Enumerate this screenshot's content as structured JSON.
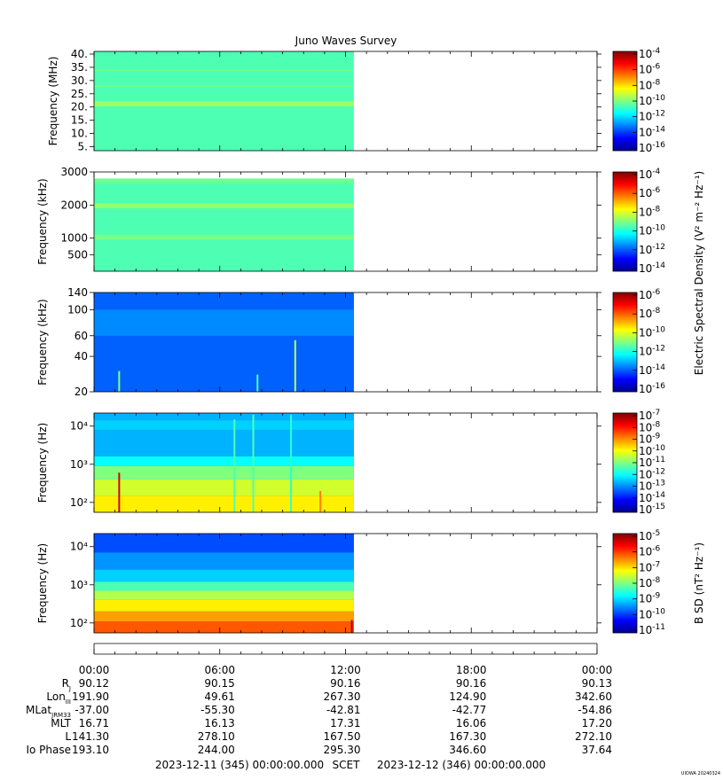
{
  "title": "Juno Waves Survey",
  "watermark": "UIOWA 20240324",
  "colors": {
    "jet": [
      "#00008f",
      "#0000ff",
      "#0080ff",
      "#00ffff",
      "#80ff80",
      "#ffff00",
      "#ff8000",
      "#ff0000",
      "#800000"
    ]
  },
  "chart_data": [
    {
      "type": "heatmap",
      "name": "panel-1",
      "ylabel": "Frequency (MHz)",
      "yscale": "linear",
      "ylim": [
        3.5,
        41
      ],
      "yticks": [
        {
          "v": 5,
          "t": "5."
        },
        {
          "v": 10,
          "t": "10."
        },
        {
          "v": 15,
          "t": "15."
        },
        {
          "v": 20,
          "t": "20."
        },
        {
          "v": 25,
          "t": "25."
        },
        {
          "v": 30,
          "t": "30."
        },
        {
          "v": 35,
          "t": "35."
        },
        {
          "v": 40,
          "t": "40."
        }
      ],
      "data_end_hour": 12.4,
      "bands": [
        {
          "low": 3.5,
          "high": 41,
          "level": 0.45
        },
        {
          "low": 20.3,
          "high": 22.2,
          "level": 0.53
        },
        {
          "low": 27.5,
          "high": 28.2,
          "level": 0.48
        },
        {
          "low": 33.5,
          "high": 34.2,
          "level": 0.48
        }
      ],
      "spikes": [],
      "colorbar": {
        "label": "",
        "exponents": [
          "-4",
          "-6",
          "-8",
          "-10",
          "-12",
          "-14",
          "-16"
        ]
      }
    },
    {
      "type": "heatmap",
      "name": "panel-2",
      "ylabel": "Frequency (kHz)",
      "yscale": "linear",
      "ylim": [
        0,
        3000
      ],
      "yticks": [
        {
          "v": 500,
          "t": "500"
        },
        {
          "v": 1000,
          "t": "1000"
        },
        {
          "v": 2000,
          "t": "2000"
        },
        {
          "v": 3000,
          "t": "3000"
        }
      ],
      "data_end_hour": 12.4,
      "bands": [
        {
          "low": 0,
          "high": 2800,
          "level": 0.45
        },
        {
          "low": 1900,
          "high": 2050,
          "level": 0.52
        },
        {
          "low": 950,
          "high": 1100,
          "level": 0.49
        },
        {
          "low": 2650,
          "high": 2800,
          "level": 0.48
        }
      ],
      "spikes": [],
      "colorbar": {
        "label": "Electric Spectral Density (V² m⁻² Hz⁻¹)",
        "exponents": [
          "-4",
          "-6",
          "-8",
          "-10",
          "-12",
          "-14"
        ]
      }
    },
    {
      "type": "heatmap",
      "name": "panel-3",
      "ylabel": "Frequency (kHz)",
      "yscale": "log",
      "ylim": [
        20,
        140
      ],
      "yticks": [
        {
          "v": 20,
          "t": "20"
        },
        {
          "v": 40,
          "t": "40"
        },
        {
          "v": 60,
          "t": "60"
        },
        {
          "v": 100,
          "t": "100"
        },
        {
          "v": 140,
          "t": "140"
        }
      ],
      "data_end_hour": 12.4,
      "bands": [
        {
          "low": 20,
          "high": 140,
          "level": 0.22
        },
        {
          "low": 60,
          "high": 100,
          "level": 0.26
        }
      ],
      "spikes": [
        {
          "hour": 1.2,
          "low": 20,
          "high": 30,
          "level": 0.5
        },
        {
          "hour": 7.8,
          "low": 20,
          "high": 28,
          "level": 0.45
        },
        {
          "hour": 9.6,
          "low": 20,
          "high": 55,
          "level": 0.55
        }
      ],
      "colorbar": {
        "label": "",
        "exponents": [
          "-6",
          "-8",
          "-10",
          "-12",
          "-14",
          "-16"
        ]
      }
    },
    {
      "type": "heatmap",
      "name": "panel-4",
      "ylabel": "Frequency (Hz)",
      "yscale": "log",
      "ylim": [
        55,
        22000
      ],
      "yticks": [
        {
          "v": 100,
          "t": "10²"
        },
        {
          "v": 1000,
          "t": "10³"
        },
        {
          "v": 10000,
          "t": "10⁴"
        }
      ],
      "data_end_hour": 12.4,
      "bands": [
        {
          "low": 55,
          "high": 22000,
          "level": 0.25
        },
        {
          "low": 1600,
          "high": 22000,
          "level": 0.3
        },
        {
          "low": 900,
          "high": 1600,
          "level": 0.38
        },
        {
          "low": 400,
          "high": 900,
          "level": 0.5
        },
        {
          "low": 150,
          "high": 400,
          "level": 0.58
        },
        {
          "low": 55,
          "high": 150,
          "level": 0.64
        },
        {
          "low": 8000,
          "high": 14000,
          "level": 0.33
        }
      ],
      "spikes": [
        {
          "hour": 1.2,
          "low": 55,
          "high": 600,
          "level": 0.92
        },
        {
          "hour": 6.7,
          "low": 55,
          "high": 15000,
          "level": 0.45
        },
        {
          "hour": 7.6,
          "low": 55,
          "high": 20000,
          "level": 0.45
        },
        {
          "hour": 9.4,
          "low": 55,
          "high": 20000,
          "level": 0.42
        },
        {
          "hour": 10.8,
          "low": 55,
          "high": 200,
          "level": 0.75
        }
      ],
      "colorbar": {
        "label": "",
        "exponents": [
          "-7",
          "-8",
          "-9",
          "-10",
          "-11",
          "-12",
          "-13",
          "-14",
          "-15"
        ]
      }
    },
    {
      "type": "heatmap",
      "name": "panel-5",
      "ylabel": "Frequency (Hz)",
      "yscale": "log",
      "ylim": [
        55,
        22000
      ],
      "yticks": [
        {
          "v": 100,
          "t": "10²"
        },
        {
          "v": 1000,
          "t": "10³"
        },
        {
          "v": 10000,
          "t": "10⁴"
        }
      ],
      "data_end_hour": 12.4,
      "bands": [
        {
          "low": 55,
          "high": 22000,
          "level": 0.2
        },
        {
          "low": 2500,
          "high": 7000,
          "level": 0.27
        },
        {
          "low": 1200,
          "high": 2500,
          "level": 0.33
        },
        {
          "low": 700,
          "high": 1200,
          "level": 0.45
        },
        {
          "low": 400,
          "high": 700,
          "level": 0.55
        },
        {
          "low": 200,
          "high": 400,
          "level": 0.64
        },
        {
          "low": 110,
          "high": 200,
          "level": 0.72
        },
        {
          "low": 55,
          "high": 110,
          "level": 0.79
        }
      ],
      "spikes": [
        {
          "hour": 12.3,
          "low": 55,
          "high": 120,
          "level": 0.95
        }
      ],
      "colorbar": {
        "label": "B SD (nT² Hz⁻¹)",
        "exponents": [
          "-5",
          "-6",
          "-7",
          "-8",
          "-9",
          "-10",
          "-11"
        ]
      }
    }
  ],
  "ephemeris": {
    "times": [
      "00:00",
      "06:00",
      "12:00",
      "18:00",
      "00:00"
    ],
    "rows": [
      {
        "label": "R",
        "sub": "J",
        "values": [
          "90.12",
          "90.15",
          "90.16",
          "90.16",
          "90.13"
        ]
      },
      {
        "label": "Lon",
        "sub": "III",
        "values": [
          "191.90",
          "49.61",
          "267.30",
          "124.90",
          "342.60"
        ]
      },
      {
        "label": "MLat",
        "sub": "JRM33",
        "values": [
          "-37.00",
          "-55.30",
          "-42.81",
          "-42.77",
          "-54.86"
        ]
      },
      {
        "label": "MLT",
        "sub": "",
        "values": [
          "16.71",
          "16.13",
          "17.31",
          "16.06",
          "17.20"
        ]
      },
      {
        "label": "L",
        "sub": "",
        "values": [
          "141.30",
          "278.10",
          "167.50",
          "167.30",
          "272.10"
        ]
      },
      {
        "label": "Io Phase",
        "sub": "",
        "values": [
          "193.10",
          "244.00",
          "295.30",
          "346.60",
          "37.64"
        ]
      }
    ]
  },
  "footer": {
    "start": "2023-12-11 (345) 00:00:00.000",
    "scet": "SCET",
    "end": "2023-12-12 (346) 00:00:00.000"
  }
}
